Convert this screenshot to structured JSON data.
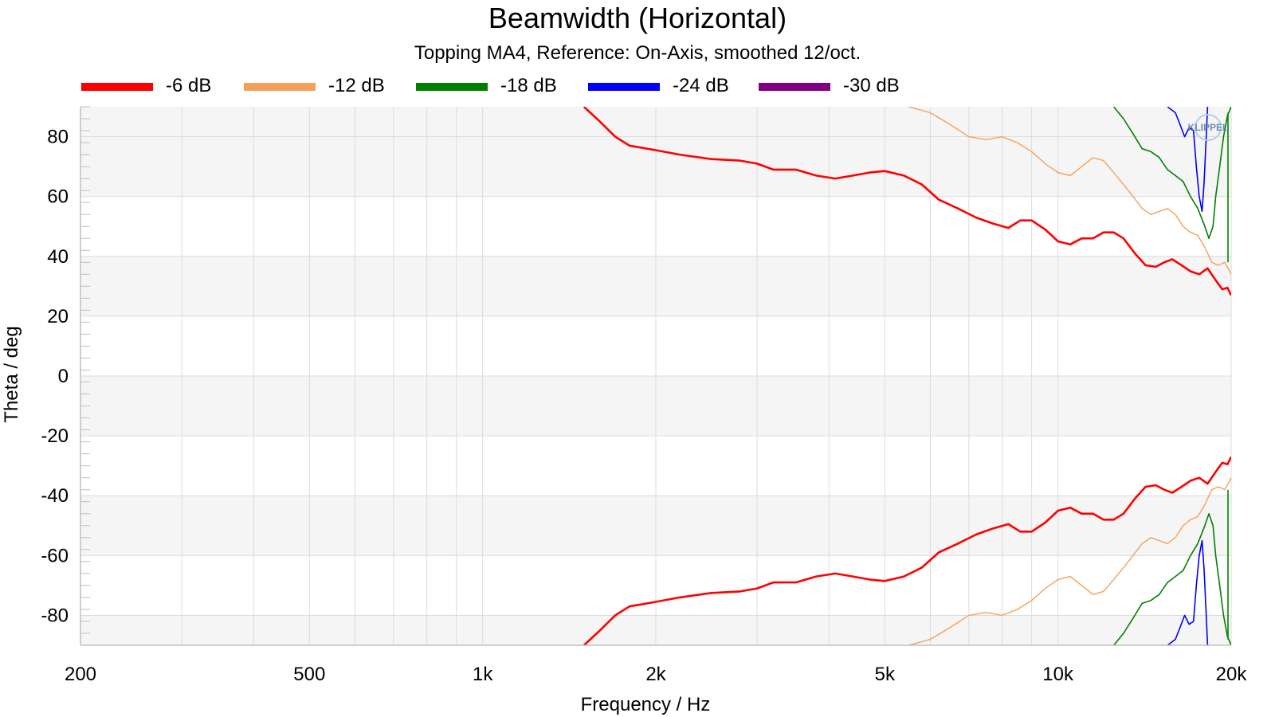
{
  "chart_data": {
    "type": "line",
    "title": "Beamwidth (Horizontal)",
    "subtitle": "Topping MA4, Reference: On-Axis, smoothed 12/oct.",
    "xlabel": "Frequency / Hz",
    "ylabel": "Theta / deg",
    "xscale": "log",
    "xlim": [
      200,
      20000
    ],
    "ylim": [
      -90,
      90
    ],
    "x_ticks": [
      {
        "value": 200,
        "label": "200"
      },
      {
        "value": 500,
        "label": "500"
      },
      {
        "value": 1000,
        "label": "1k"
      },
      {
        "value": 2000,
        "label": "2k"
      },
      {
        "value": 5000,
        "label": "5k"
      },
      {
        "value": 10000,
        "label": "10k"
      },
      {
        "value": 20000,
        "label": "20k"
      }
    ],
    "y_ticks": [
      {
        "value": 80,
        "label": "80"
      },
      {
        "value": 60,
        "label": "60"
      },
      {
        "value": 40,
        "label": "40"
      },
      {
        "value": 20,
        "label": "20"
      },
      {
        "value": 0,
        "label": "0"
      },
      {
        "value": -20,
        "label": "-20"
      },
      {
        "value": -40,
        "label": "-40"
      },
      {
        "value": -60,
        "label": "-60"
      },
      {
        "value": -80,
        "label": "-80"
      }
    ],
    "grid": true,
    "legend_position": "top",
    "watermark": "KLIPPEL",
    "series": [
      {
        "name": "-6 dB",
        "color": "#ff0000",
        "symmetric": true,
        "points": [
          [
            1500,
            90
          ],
          [
            1600,
            85
          ],
          [
            1700,
            80
          ],
          [
            1800,
            77
          ],
          [
            2000,
            75.5
          ],
          [
            2200,
            74
          ],
          [
            2500,
            72.5
          ],
          [
            2800,
            72
          ],
          [
            3000,
            71
          ],
          [
            3200,
            69
          ],
          [
            3500,
            69
          ],
          [
            3800,
            67
          ],
          [
            4100,
            66
          ],
          [
            4400,
            67
          ],
          [
            4700,
            68
          ],
          [
            5000,
            68.5
          ],
          [
            5400,
            67
          ],
          [
            5800,
            64
          ],
          [
            6200,
            59
          ],
          [
            6700,
            56
          ],
          [
            7200,
            53
          ],
          [
            7700,
            51
          ],
          [
            8200,
            49.5
          ],
          [
            8600,
            52
          ],
          [
            9000,
            52
          ],
          [
            9500,
            49
          ],
          [
            10000,
            45
          ],
          [
            10500,
            44
          ],
          [
            11000,
            46
          ],
          [
            11500,
            46
          ],
          [
            12000,
            48
          ],
          [
            12500,
            48
          ],
          [
            13000,
            46
          ],
          [
            13600,
            41
          ],
          [
            14200,
            37
          ],
          [
            14800,
            36.5
          ],
          [
            15300,
            38
          ],
          [
            15800,
            39
          ],
          [
            16400,
            37
          ],
          [
            17000,
            35
          ],
          [
            17600,
            34
          ],
          [
            18200,
            36
          ],
          [
            18800,
            32
          ],
          [
            19300,
            29
          ],
          [
            19700,
            29.5
          ],
          [
            20000,
            27
          ]
        ]
      },
      {
        "name": "-12 dB",
        "color": "#f5a05a",
        "symmetric": true,
        "points": [
          [
            5500,
            90
          ],
          [
            6000,
            88
          ],
          [
            6500,
            84
          ],
          [
            7000,
            80
          ],
          [
            7500,
            79
          ],
          [
            8000,
            80
          ],
          [
            8500,
            78
          ],
          [
            9000,
            75
          ],
          [
            9500,
            71
          ],
          [
            10000,
            68
          ],
          [
            10500,
            67
          ],
          [
            11000,
            70
          ],
          [
            11500,
            73
          ],
          [
            12000,
            72
          ],
          [
            12500,
            68
          ],
          [
            13000,
            64
          ],
          [
            13500,
            60
          ],
          [
            14000,
            56
          ],
          [
            14500,
            54
          ],
          [
            15000,
            55
          ],
          [
            15500,
            56
          ],
          [
            16000,
            54
          ],
          [
            16500,
            50
          ],
          [
            17000,
            48
          ],
          [
            17500,
            47
          ],
          [
            18000,
            43
          ],
          [
            18500,
            38
          ],
          [
            19000,
            37
          ],
          [
            19500,
            38
          ],
          [
            20000,
            34
          ]
        ]
      },
      {
        "name": "-18 dB",
        "color": "#008000",
        "symmetric": true,
        "points": [
          [
            12500,
            90
          ],
          [
            13000,
            86
          ],
          [
            13500,
            81
          ],
          [
            14000,
            76
          ],
          [
            14500,
            75
          ],
          [
            15000,
            73
          ],
          [
            15500,
            69
          ],
          [
            16000,
            67
          ],
          [
            16500,
            65
          ],
          [
            17000,
            60
          ],
          [
            17500,
            56
          ],
          [
            18000,
            50
          ],
          [
            18300,
            46
          ],
          [
            18600,
            50
          ],
          [
            18800,
            60
          ],
          [
            19100,
            70
          ],
          [
            19400,
            80
          ],
          [
            19700,
            87
          ],
          [
            20000,
            90
          ]
        ]
      },
      {
        "name": "-24 dB",
        "color": "#0000ff",
        "symmetric": true,
        "points": [
          [
            15500,
            90
          ],
          [
            16000,
            88
          ],
          [
            16300,
            84
          ],
          [
            16600,
            80
          ],
          [
            16900,
            83
          ],
          [
            17200,
            82
          ],
          [
            17400,
            70
          ],
          [
            17600,
            60
          ],
          [
            17800,
            55
          ],
          [
            17950,
            65
          ],
          [
            18100,
            80
          ],
          [
            18200,
            90
          ]
        ]
      },
      {
        "name": "-30 dB",
        "color": "#800080",
        "symmetric": true,
        "points": []
      }
    ]
  }
}
